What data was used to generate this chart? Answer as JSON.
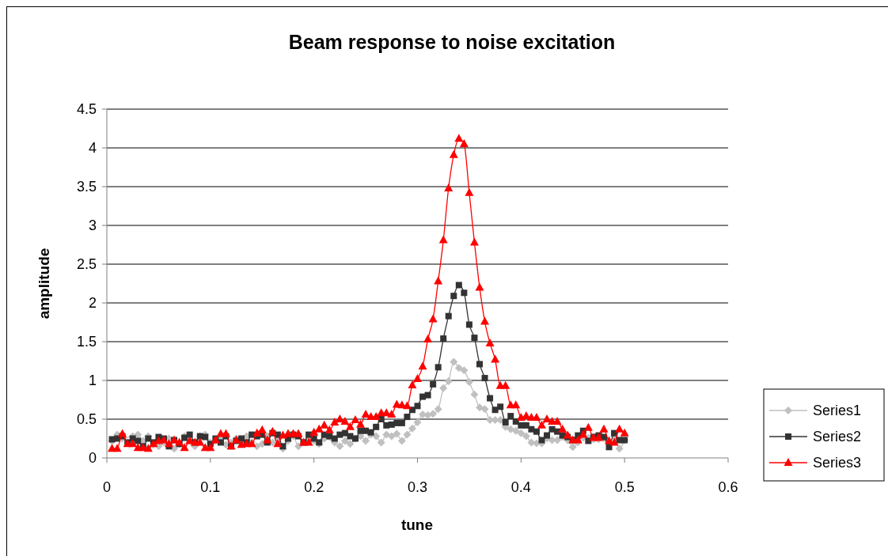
{
  "chart_data": {
    "type": "line",
    "title": "Beam response to noise excitation",
    "xlabel": "tune",
    "ylabel": "amplitude",
    "x": [
      0.005,
      0.01,
      0.015,
      0.02,
      0.025,
      0.03,
      0.035,
      0.04,
      0.045,
      0.05,
      0.055,
      0.06,
      0.065,
      0.07,
      0.075,
      0.08,
      0.085,
      0.09,
      0.095,
      0.1,
      0.105,
      0.11,
      0.115,
      0.12,
      0.125,
      0.13,
      0.135,
      0.14,
      0.145,
      0.15,
      0.155,
      0.16,
      0.165,
      0.17,
      0.175,
      0.18,
      0.185,
      0.19,
      0.195,
      0.2,
      0.205,
      0.21,
      0.215,
      0.22,
      0.225,
      0.23,
      0.235,
      0.24,
      0.245,
      0.25,
      0.255,
      0.26,
      0.265,
      0.27,
      0.275,
      0.28,
      0.285,
      0.29,
      0.295,
      0.3,
      0.305,
      0.31,
      0.315,
      0.32,
      0.325,
      0.33,
      0.335,
      0.34,
      0.345,
      0.35,
      0.355,
      0.36,
      0.365,
      0.37,
      0.375,
      0.38,
      0.385,
      0.39,
      0.395,
      0.4,
      0.405,
      0.41,
      0.415,
      0.42,
      0.425,
      0.43,
      0.435,
      0.44,
      0.445,
      0.45,
      0.455,
      0.46,
      0.465,
      0.47,
      0.475,
      0.48,
      0.485,
      0.49,
      0.495,
      0.5
    ],
    "series": [
      {
        "name": "Series1",
        "color": "#c0c0c0",
        "marker": "diamond",
        "values": [
          0.22,
          0.3,
          0.25,
          null,
          0.28,
          0.3,
          0.22,
          0.28,
          0.17,
          0.15,
          0.2,
          0.25,
          0.12,
          0.18,
          0.28,
          0.22,
          0.15,
          0.28,
          0.3,
          0.2,
          0.22,
          0.25,
          0.17,
          0.2,
          0.25,
          0.22,
          0.28,
          0.2,
          0.15,
          0.18,
          0.28,
          0.2,
          0.25,
          0.12,
          0.22,
          0.28,
          0.15,
          0.2,
          0.25,
          0.22,
          0.18,
          0.25,
          null,
          0.2,
          0.15,
          0.22,
          0.18,
          0.25,
          0.28,
          0.22,
          0.3,
          0.28,
          0.2,
          0.3,
          0.28,
          0.31,
          0.22,
          0.3,
          0.38,
          0.46,
          0.56,
          0.55,
          0.57,
          0.63,
          0.9,
          0.99,
          1.24,
          1.16,
          1.13,
          0.98,
          0.82,
          0.65,
          0.63,
          0.49,
          0.49,
          0.49,
          0.4,
          0.37,
          0.35,
          0.32,
          0.28,
          0.2,
          0.19,
          0.19,
          0.25,
          0.23,
          0.23,
          0.27,
          0.23,
          0.14,
          0.2,
          0.26,
          0.26,
          0.24,
          0.24,
          0.25,
          0.2,
          0.28,
          0.12,
          0.23
        ]
      },
      {
        "name": "Series2",
        "color": "#333333",
        "marker": "square",
        "values": [
          0.24,
          0.25,
          0.28,
          0.2,
          0.25,
          0.22,
          0.15,
          0.25,
          0.2,
          0.27,
          0.25,
          0.15,
          0.23,
          0.18,
          0.26,
          0.3,
          0.2,
          0.28,
          0.27,
          0.18,
          0.25,
          0.2,
          0.28,
          0.15,
          0.22,
          0.25,
          0.2,
          0.3,
          0.28,
          0.3,
          0.2,
          0.32,
          0.3,
          0.15,
          0.25,
          0.3,
          0.28,
          0.2,
          0.3,
          0.25,
          0.2,
          0.3,
          0.28,
          0.25,
          0.3,
          0.32,
          0.28,
          0.25,
          0.35,
          0.35,
          0.33,
          0.4,
          0.5,
          0.42,
          0.43,
          0.45,
          0.45,
          0.53,
          0.62,
          0.67,
          0.79,
          0.81,
          0.95,
          1.17,
          1.54,
          1.83,
          2.09,
          2.23,
          2.13,
          1.72,
          1.55,
          1.21,
          1.03,
          0.77,
          0.62,
          0.66,
          0.46,
          0.54,
          0.47,
          0.42,
          0.42,
          0.37,
          0.34,
          0.23,
          0.29,
          0.37,
          0.34,
          0.29,
          0.27,
          0.23,
          0.29,
          0.35,
          0.22,
          0.27,
          0.29,
          0.27,
          0.14,
          0.32,
          0.23,
          0.23
        ]
      },
      {
        "name": "Series3",
        "color": "#ff0000",
        "marker": "triangle",
        "values": [
          0.12,
          0.12,
          0.31,
          0.18,
          0.18,
          0.13,
          0.13,
          0.12,
          0.18,
          0.22,
          0.23,
          0.18,
          0.23,
          0.2,
          0.13,
          0.22,
          0.2,
          0.2,
          0.13,
          0.13,
          0.23,
          0.31,
          0.31,
          0.15,
          0.23,
          0.17,
          0.18,
          0.18,
          0.32,
          0.36,
          0.23,
          0.34,
          0.18,
          0.29,
          0.31,
          0.31,
          0.31,
          0.2,
          0.2,
          0.33,
          0.37,
          0.42,
          0.36,
          0.46,
          0.5,
          0.47,
          0.4,
          0.49,
          0.43,
          0.56,
          0.53,
          0.53,
          0.58,
          0.58,
          0.56,
          0.69,
          0.68,
          0.67,
          0.94,
          1.02,
          1.18,
          1.53,
          1.79,
          2.28,
          2.81,
          3.48,
          3.91,
          4.12,
          4.05,
          3.42,
          2.78,
          2.2,
          1.76,
          1.48,
          1.27,
          0.93,
          0.93,
          0.68,
          0.68,
          0.52,
          0.54,
          0.52,
          0.52,
          0.42,
          0.5,
          0.47,
          0.47,
          0.37,
          0.29,
          0.23,
          0.23,
          0.3,
          0.39,
          0.26,
          0.26,
          0.37,
          0.22,
          0.2,
          0.37,
          0.32
        ]
      }
    ],
    "xlim": [
      0,
      0.6
    ],
    "xticks": [
      0,
      0.1,
      0.2,
      0.3,
      0.4,
      0.5,
      0.6
    ],
    "ylim": [
      0,
      4.5
    ],
    "yticks": [
      0,
      0.5,
      1,
      1.5,
      2,
      2.5,
      3,
      3.5,
      4,
      4.5
    ],
    "grid": "y",
    "legend": "right",
    "line_style": "solid"
  }
}
